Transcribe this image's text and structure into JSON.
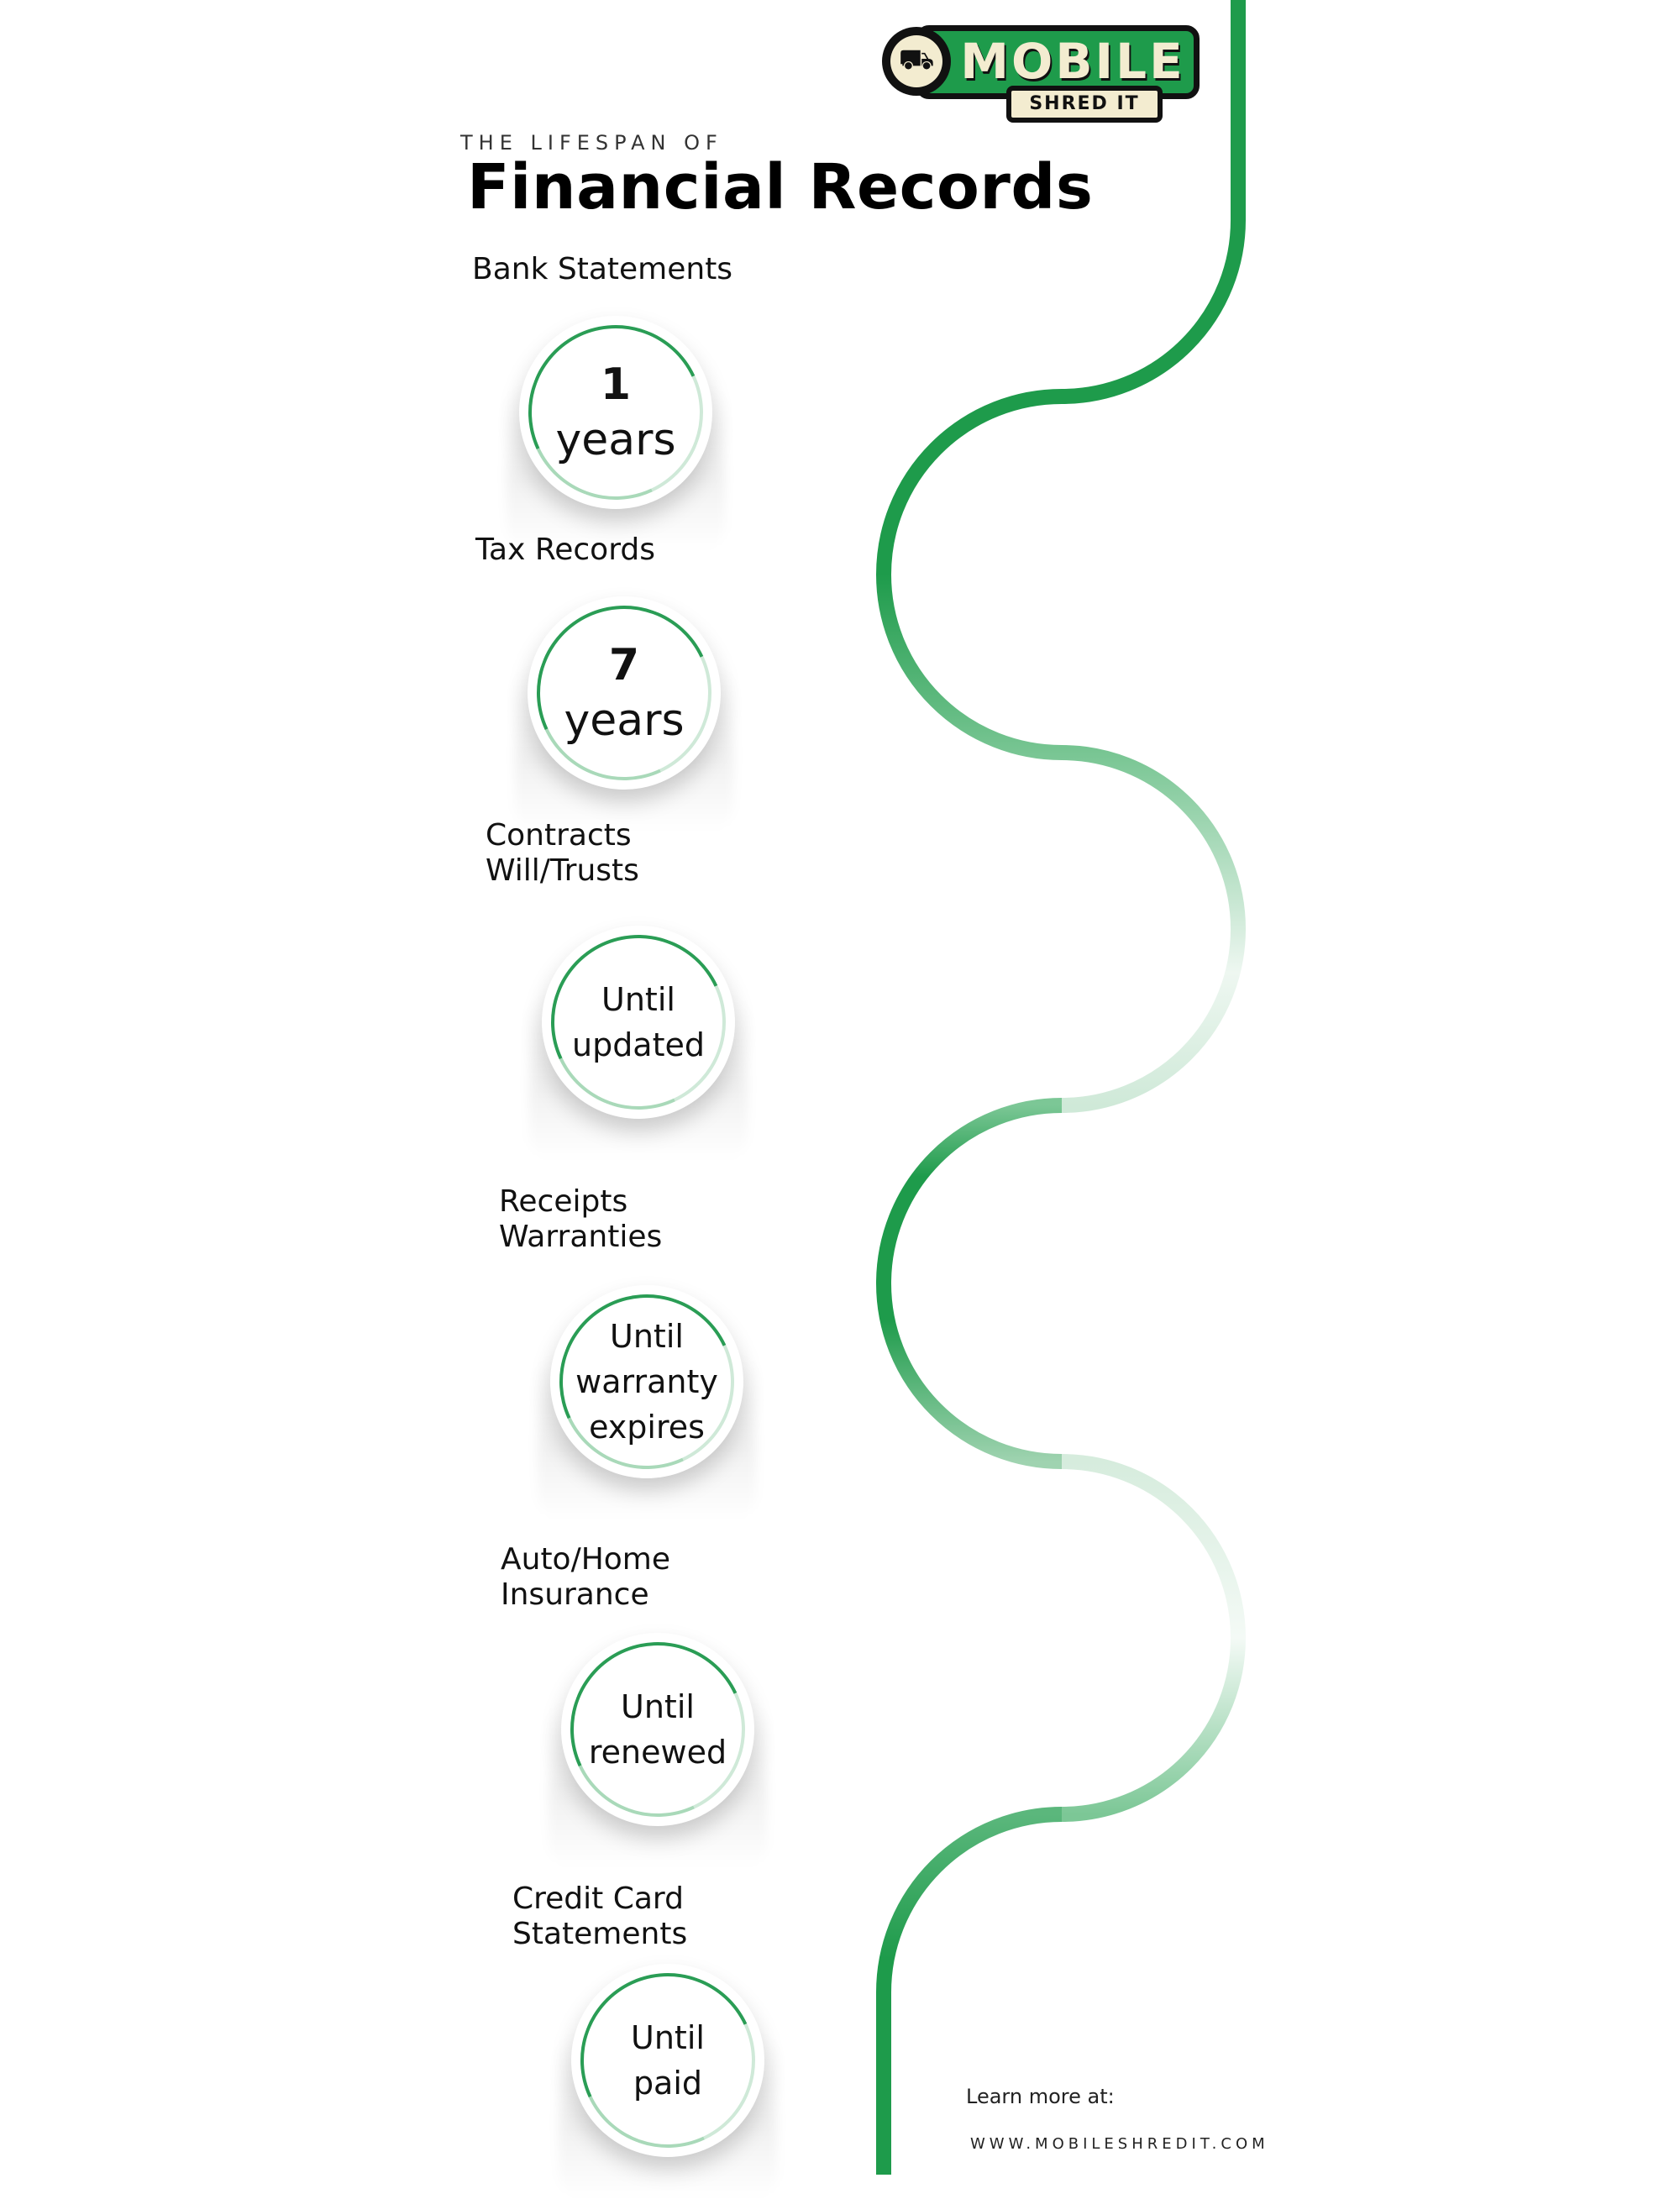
{
  "brand": {
    "name": "MOBILE",
    "sub": "SHRED IT",
    "icon": "shredder-truck-icon",
    "colors": {
      "green": "#1e9b4b",
      "cream": "#f3ecd0",
      "dark": "#111111"
    }
  },
  "header": {
    "kicker": "THE LIFESPAN OF",
    "title": "Financial Records"
  },
  "records": [
    {
      "label": [
        "Bank Statements"
      ],
      "duration": [
        "1",
        "years"
      ]
    },
    {
      "label": [
        "Tax Records"
      ],
      "duration": [
        "7",
        "years"
      ]
    },
    {
      "label": [
        "Contracts",
        "Will/Trusts"
      ],
      "duration": [
        "Until",
        "updated"
      ]
    },
    {
      "label": [
        "Receipts",
        "Warranties"
      ],
      "duration": [
        "Until",
        "warranty",
        "expires"
      ]
    },
    {
      "label": [
        "Auto/Home",
        "Insurance"
      ],
      "duration": [
        "Until",
        "renewed"
      ]
    },
    {
      "label": [
        "Credit Card",
        "Statements"
      ],
      "duration": [
        "Until",
        "paid"
      ]
    }
  ],
  "footer": {
    "learn": "Learn more at:",
    "url": "WWW.MOBILESHREDIT.COM"
  }
}
